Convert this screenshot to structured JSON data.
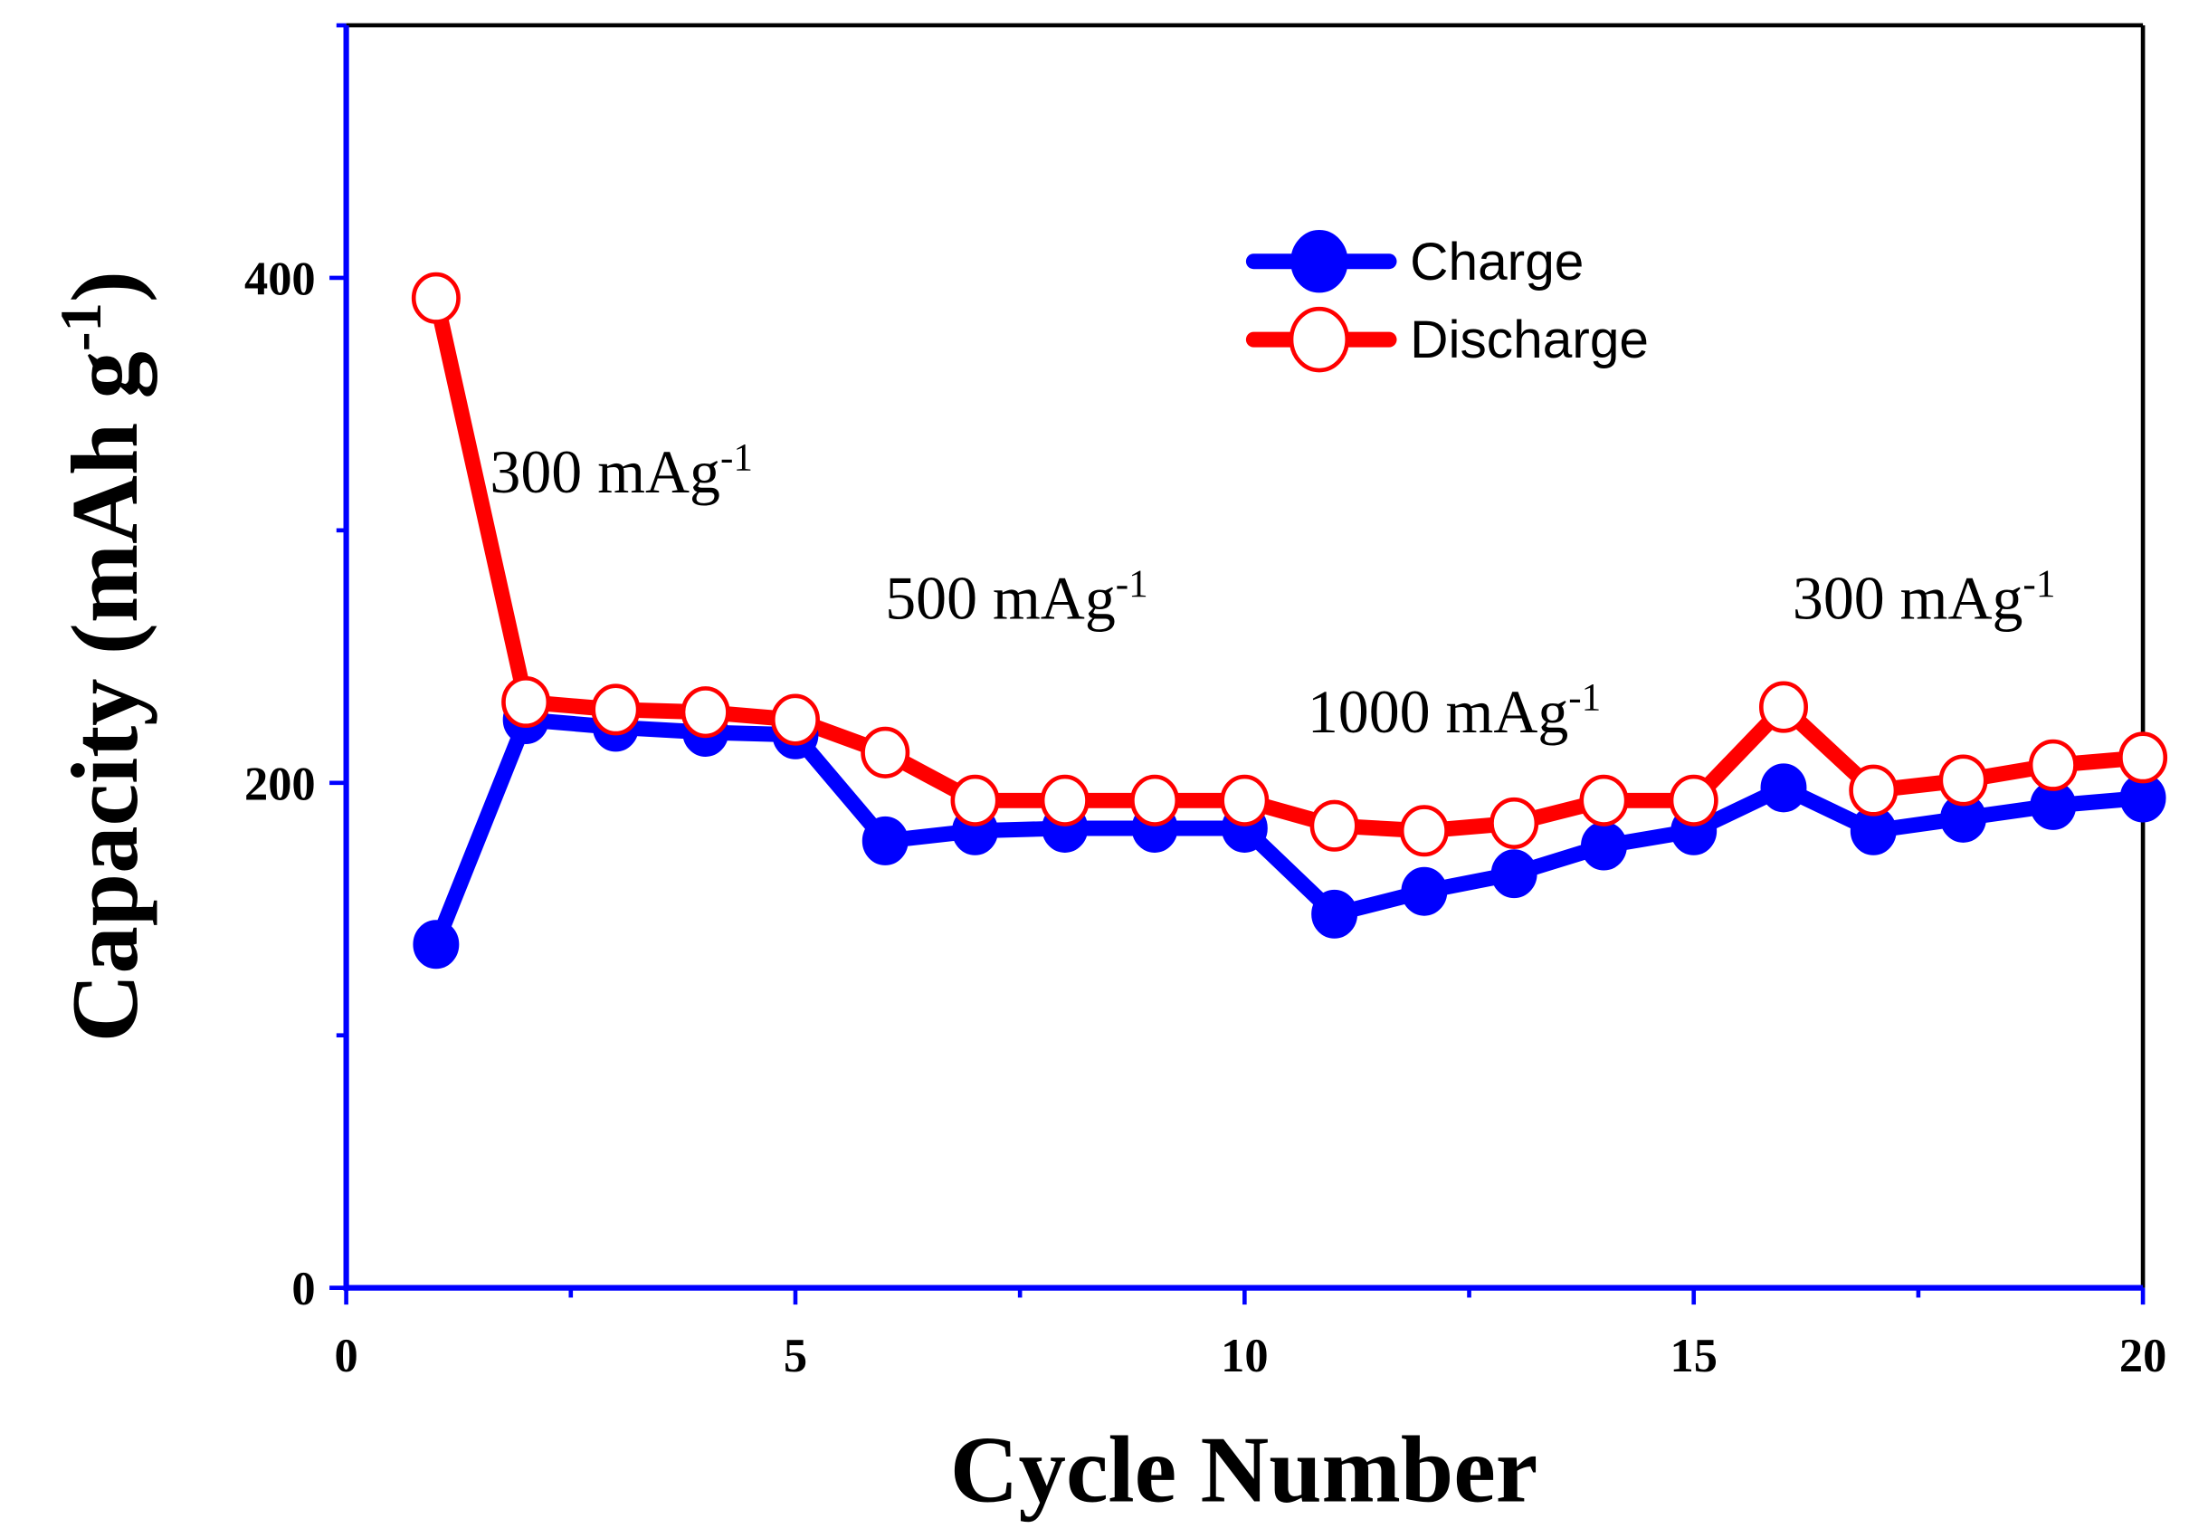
{
  "chart_data": {
    "type": "line",
    "title": "",
    "xlabel": "Cycle Number",
    "ylabel": "Capacity (mAh g",
    "ylabel_sup": "-1",
    "ylabel_end": ")",
    "xlim": [
      0,
      20
    ],
    "ylim": [
      0,
      500
    ],
    "x_ticks": [
      0,
      5,
      10,
      15,
      20
    ],
    "x_tick_labels": [
      "0",
      "5",
      "10",
      "15",
      "20"
    ],
    "x_minor_ticks": [
      2.5,
      7.5,
      12.5,
      17.5
    ],
    "y_ticks": [
      0,
      200,
      400
    ],
    "y_tick_labels": [
      "0",
      "200",
      "400"
    ],
    "y_minor_ticks": [
      100,
      300,
      500
    ],
    "grid": false,
    "legend_position": "top-right",
    "x": [
      1,
      2,
      3,
      4,
      5,
      6,
      7,
      8,
      9,
      10,
      11,
      12,
      13,
      14,
      15,
      16,
      17,
      18,
      19,
      20
    ],
    "series": [
      {
        "name": "Charge",
        "color": "#0000ff",
        "marker": "filled-circle",
        "values": [
          136,
          225,
          222,
          220,
          219,
          177,
          181,
          182,
          182,
          182,
          148,
          157,
          164,
          175,
          181,
          198,
          181,
          186,
          191,
          194
        ]
      },
      {
        "name": "Discharge",
        "color": "#ff0000",
        "marker": "open-circle",
        "values": [
          392,
          232,
          229,
          228,
          225,
          212,
          193,
          193,
          193,
          193,
          183,
          181,
          184,
          193,
          193,
          230,
          197,
          201,
          207,
          210
        ]
      }
    ],
    "annotations": [
      {
        "text": "300 mAg",
        "sup": "-1",
        "x": 1.6,
        "y": 315
      },
      {
        "text": "500 mAg",
        "sup": "-1",
        "x": 6.0,
        "y": 265
      },
      {
        "text": "1000 mAg",
        "sup": "-1",
        "x": 10.7,
        "y": 220
      },
      {
        "text": "300 mAg",
        "sup": "-1",
        "x": 16.1,
        "y": 265
      }
    ]
  }
}
